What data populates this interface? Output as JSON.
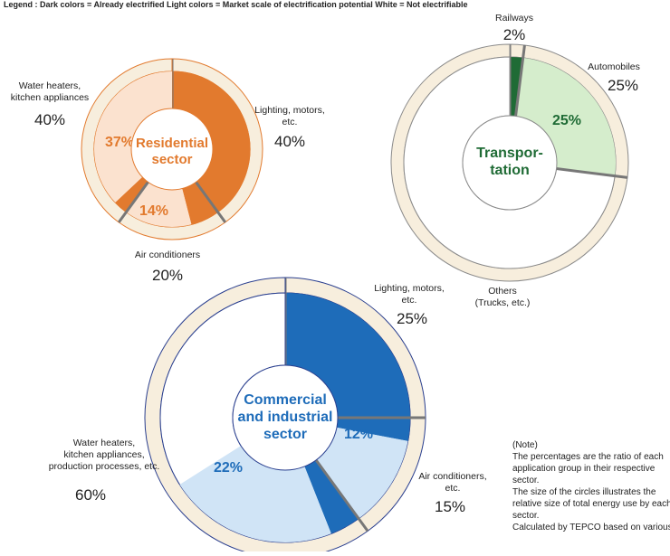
{
  "legend_text": "Legend : Dark colors = Already electrified  Light colors = Market scale of electrification potential  White = Not electrifiable",
  "note": "(Note)\nThe percentages are the ratio of each\napplication group in their respective\nsector.\nThe size of the circles illustrates the\nrelative size of total energy use by each\nsector.\nCalculated by TEPCO based on various",
  "chart_data": [
    {
      "type": "donut",
      "title": "Residential\nsector",
      "categories": [
        "Lighting, motors,\netc.",
        "Air conditioners",
        "Water heaters,\nkitchen appliances"
      ],
      "values": [
        40,
        20,
        40
      ],
      "value_labels": [
        "40%",
        "20%",
        "40%"
      ],
      "electrified": [
        40,
        6,
        3
      ],
      "potential": [
        0,
        14,
        37
      ],
      "potential_labels": [
        null,
        "14%",
        "37%"
      ],
      "colors": {
        "dark": "#e27a2e",
        "light": "#fbe2cf",
        "ring": "#f7eedd",
        "line": "#e27a2e",
        "title": "#e27a2e"
      }
    },
    {
      "type": "donut",
      "title": "Transpor-\ntation",
      "categories": [
        "Railways",
        "Automobiles",
        "Others\n(Trucks, etc.)"
      ],
      "values": [
        2,
        25,
        73
      ],
      "value_labels": [
        "2%",
        "25%",
        null
      ],
      "electrified": [
        2,
        0,
        0
      ],
      "potential": [
        0,
        25,
        0
      ],
      "potential_labels": [
        null,
        "25%",
        null
      ],
      "colors": {
        "dark": "#1f6b35",
        "light": "#d5edcc",
        "ring": "#f7eedd",
        "line": "#8a8a8a",
        "title": "#1f6b35"
      }
    },
    {
      "type": "donut",
      "title": "Commercial\nand industrial\nsector",
      "categories": [
        "Lighting, motors,\netc.",
        "Air conditioners,\netc.",
        "Water heaters,\nkitchen appliances,\nproduction processes, etc."
      ],
      "values": [
        25,
        15,
        60
      ],
      "value_labels": [
        "25%",
        "15%",
        "60%"
      ],
      "electrified": [
        25,
        3,
        4
      ],
      "potential": [
        0,
        12,
        22
      ],
      "potential_labels": [
        null,
        "12%",
        "22%"
      ],
      "colors": {
        "dark": "#1e6cb9",
        "light": "#d0e4f6",
        "ring": "#f7eedd",
        "line": "#2a3f8f",
        "title": "#1e6cb9"
      }
    }
  ]
}
